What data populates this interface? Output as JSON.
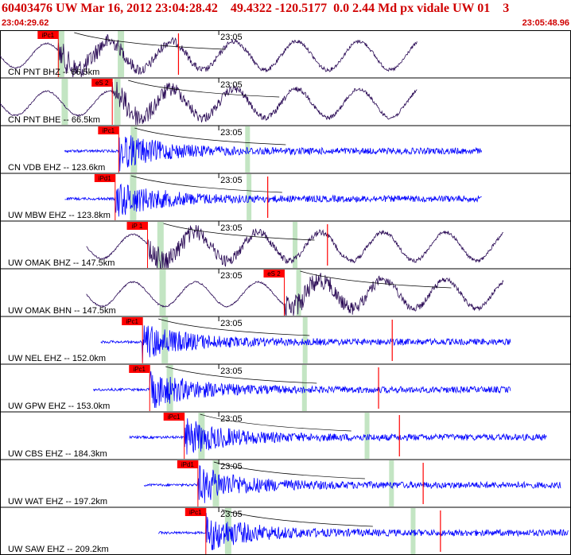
{
  "header": {
    "title": "60403476 UW Mar 16, 2012 23:04:28.42    49.4322 -120.5177  0.0 2.44 Md px vidale UW 01    3",
    "start_time": "23:04:29.62",
    "end_time": "23:05:48.96"
  },
  "colors": {
    "title": "#d00000",
    "pick_fill": "#ff0000",
    "window": "#b8e0b8",
    "trace_broadband": "#2a0a55",
    "trace_short_period": "#0000ff",
    "travel_curve": "#000000",
    "marker": "#ff0000"
  },
  "chart_data": {
    "type": "line",
    "time_range": [
      "23:04:29.62",
      "23:05:48.96"
    ],
    "time_tick_label": "23:05",
    "time_tick_seconds": 30.4,
    "duration_seconds": 79.34,
    "traces": [
      {
        "label": "CN PNT BHZ -- 66.5km",
        "pick": "iPc1",
        "pick_t": 8.1,
        "windows": [
          8.5,
          16.8
        ],
        "extra_windows": [],
        "signal": [
          0,
          58
        ],
        "kind": "broadband",
        "marker": 24.8
      },
      {
        "label": "CN PNT BHE -- 66.5km",
        "pick": "eS 2",
        "pick_t": 15.6,
        "windows": [
          9.0,
          16.3
        ],
        "extra_windows": [],
        "signal": [
          0,
          58
        ],
        "kind": "broadband",
        "marker": null
      },
      {
        "label": "CN VDB EHZ -- 123.6km",
        "pick": "iPc1",
        "pick_t": 16.5,
        "windows": [
          18.6
        ],
        "extra_windows": [
          34.4
        ],
        "signal": [
          9,
          67
        ],
        "kind": "short",
        "marker": null
      },
      {
        "label": "UW MBW EHZ -- 123.8km",
        "pick": "iPd1",
        "pick_t": 16.0,
        "windows": [
          18.5
        ],
        "extra_windows": [
          34.6
        ],
        "signal": [
          9,
          67
        ],
        "kind": "short",
        "marker": 37.2
      },
      {
        "label": "UW OMAK BHZ -- 147.5km",
        "pick": "iP 1",
        "pick_t": 20.5,
        "windows": [
          22.3
        ],
        "extra_windows": [
          41.0
        ],
        "signal": [
          12,
          70
        ],
        "kind": "broadband",
        "marker": 45.5
      },
      {
        "label": "UW OMAK BHN -- 147.5km",
        "pick": "eS 2",
        "pick_t": 39.5,
        "windows": [
          22.6
        ],
        "extra_windows": [
          41.5
        ],
        "signal": [
          12,
          70
        ],
        "kind": "broadband",
        "marker": null
      },
      {
        "label": "UW NEL EHZ -- 152.0km",
        "pick": "iPc1",
        "pick_t": 19.8,
        "windows": [
          22.9
        ],
        "extra_windows": [
          42.4
        ],
        "signal": [
          14,
          71
        ],
        "kind": "short",
        "marker": 54.5
      },
      {
        "label": "UW GPW EHZ -- 153.0km",
        "pick": "iPc1",
        "pick_t": 20.8,
        "windows": [
          23.6
        ],
        "extra_windows": [
          42.3
        ],
        "signal": [
          13,
          71
        ],
        "kind": "short",
        "marker": 52.6
      },
      {
        "label": "UW CBS EHZ -- 184.3km",
        "pick": "iPc1",
        "pick_t": 25.6,
        "windows": [
          28.0
        ],
        "extra_windows": [
          51.0
        ],
        "signal": [
          18,
          76
        ],
        "kind": "short",
        "marker": 55.5
      },
      {
        "label": "UW WAT EHZ -- 197.2km",
        "pick": "iPd1",
        "pick_t": 27.5,
        "windows": [
          30.0
        ],
        "extra_windows": [
          54.4
        ],
        "signal": [
          20,
          78
        ],
        "kind": "short",
        "marker": 58.8
      },
      {
        "label": "UW SAW EHZ -- 209.2km",
        "pick": "iPc1",
        "pick_t": 28.6,
        "windows": [
          31.7
        ],
        "extra_windows": [
          57.4
        ],
        "signal": [
          22,
          79
        ],
        "kind": "short",
        "marker": 61.2
      }
    ]
  }
}
